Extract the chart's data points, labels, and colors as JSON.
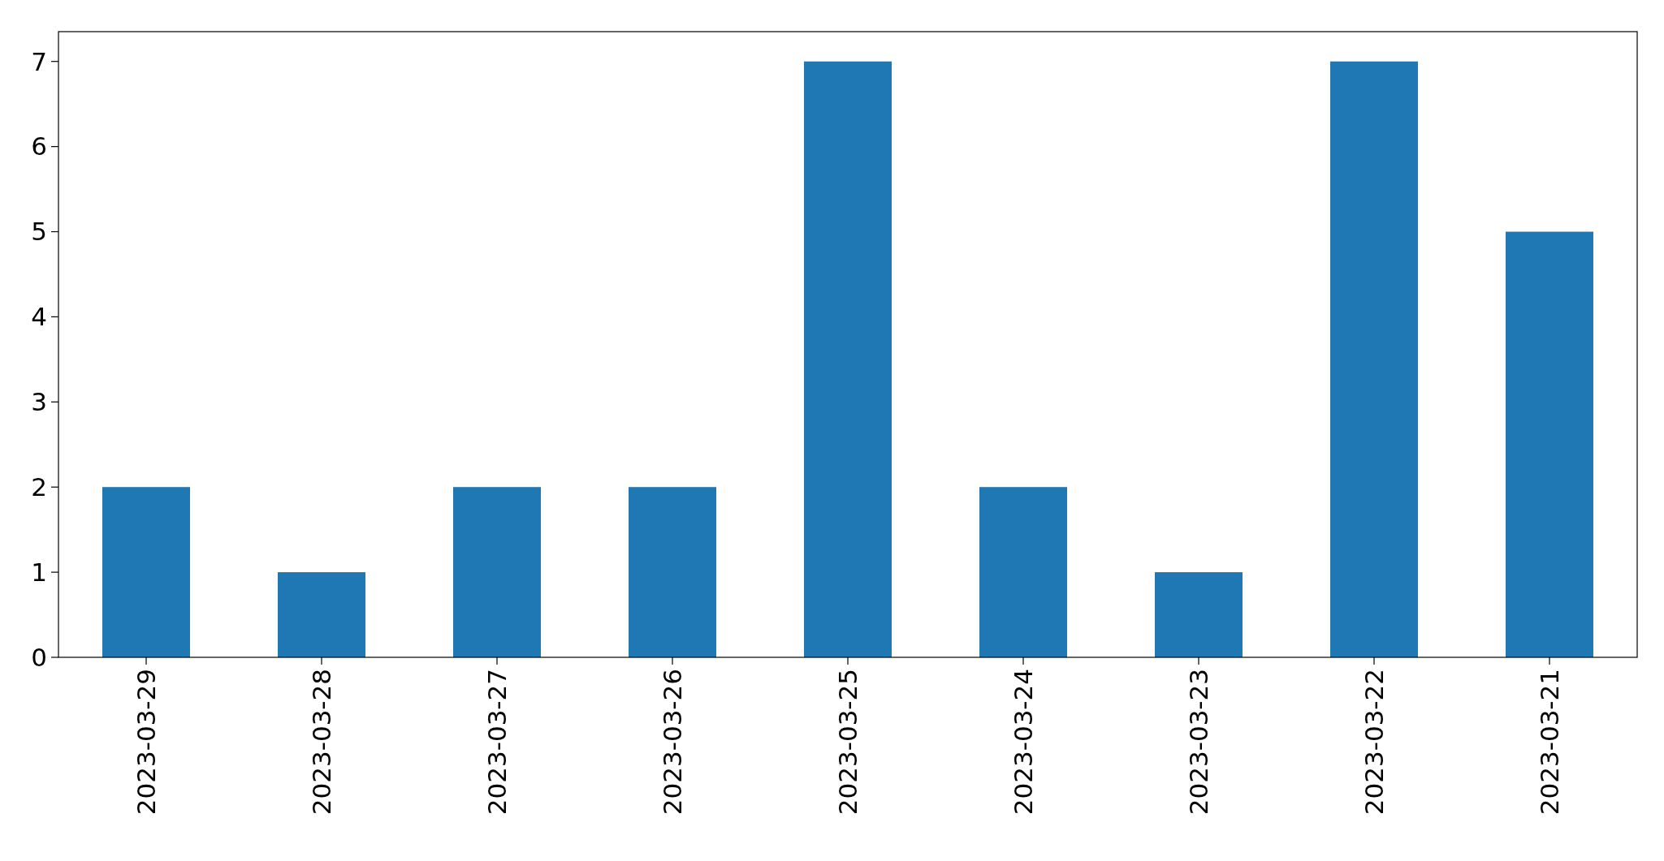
{
  "chart_data": {
    "type": "bar",
    "categories": [
      "2023-03-29",
      "2023-03-28",
      "2023-03-27",
      "2023-03-26",
      "2023-03-25",
      "2023-03-24",
      "2023-03-23",
      "2023-03-22",
      "2023-03-21"
    ],
    "values": [
      2,
      1,
      2,
      2,
      7,
      2,
      1,
      7,
      5
    ],
    "color": "#1f77b4",
    "ylim": [
      0,
      7.35
    ],
    "yticks": [
      0,
      1,
      2,
      3,
      4,
      5,
      6,
      7
    ],
    "grid": false
  }
}
